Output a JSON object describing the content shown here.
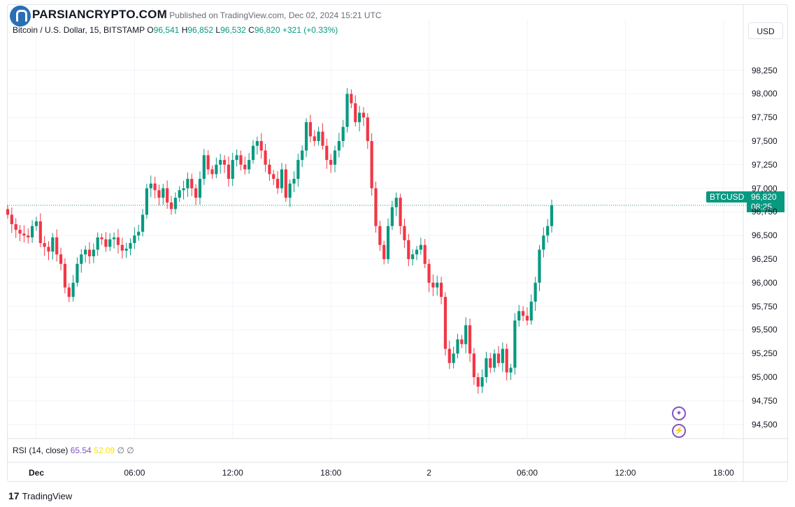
{
  "header": {
    "publisher_line": "Published on TradingView.com, Dec 02, 2024 15:21 UTC",
    "brand": "PARSIANCRYPTO.COM"
  },
  "legend": {
    "symbol": "Bitcoin / U.S. Dollar, 15, BITSTAMP",
    "o_label": "O",
    "o_value": "96,541",
    "h_label": "H",
    "h_value": "96,852",
    "l_label": "L",
    "l_value": "96,532",
    "c_label": "C",
    "c_value": "96,820",
    "change": "+321 (+0.33%)"
  },
  "currency_button": "USD",
  "price_tag": {
    "symbol": "BTCUSD",
    "price": "96,820",
    "countdown": "08:25"
  },
  "rsi": {
    "label": "RSI (14, close)",
    "value1": "65.54",
    "value2": "52.09",
    "n1": "∅",
    "n2": "∅"
  },
  "footer": {
    "brand": "TradingView",
    "logo_glyph": "17"
  },
  "colors": {
    "up": "#089981",
    "down": "#f23645",
    "grid": "#f0f3fa",
    "rsi": "#7e57c2"
  },
  "chart_data": {
    "type": "candlestick",
    "title": "Bitcoin / U.S. Dollar, 15, BITSTAMP",
    "interval_minutes": 15,
    "ylim": [
      94350,
      98550
    ],
    "y_ticks": [
      "98,250",
      "98,000",
      "97,750",
      "97,500",
      "97,250",
      "97,000",
      "96,750",
      "96,500",
      "96,250",
      "96,000",
      "95,750",
      "95,500",
      "95,250",
      "95,000",
      "94,750",
      "94,500"
    ],
    "y_tick_values": [
      98250,
      98000,
      97750,
      97500,
      97250,
      97000,
      96750,
      96500,
      96250,
      96000,
      95750,
      95500,
      95250,
      95000,
      94750,
      94500
    ],
    "x_ticks": [
      {
        "label": "Dec",
        "hour": 0
      },
      {
        "label": "06:00",
        "hour": 6
      },
      {
        "label": "12:00",
        "hour": 12
      },
      {
        "label": "18:00",
        "hour": 18
      },
      {
        "label": "2",
        "hour": 24
      },
      {
        "label": "06:00",
        "hour": 30
      },
      {
        "label": "12:00",
        "hour": 36
      },
      {
        "label": "18:00",
        "hour": 42
      }
    ],
    "last_price": 96820,
    "closes": [
      96720,
      96620,
      96560,
      96520,
      96500,
      96480,
      96600,
      96650,
      96420,
      96380,
      96330,
      96480,
      96300,
      96200,
      95950,
      95850,
      96000,
      96200,
      96300,
      96350,
      96280,
      96350,
      96480,
      96460,
      96380,
      96460,
      96480,
      96400,
      96340,
      96360,
      96420,
      96500,
      96540,
      96720,
      97000,
      97050,
      96980,
      96900,
      97000,
      96850,
      96780,
      96900,
      96980,
      97000,
      97100,
      97000,
      96900,
      97100,
      97350,
      97200,
      97150,
      97250,
      97300,
      97250,
      97100,
      97300,
      97350,
      97250,
      97200,
      97300,
      97450,
      97500,
      97400,
      97250,
      97150,
      97100,
      97000,
      97200,
      96900,
      97050,
      97100,
      97300,
      97400,
      97700,
      97550,
      97500,
      97600,
      97450,
      97300,
      97250,
      97400,
      97500,
      97650,
      98000,
      97900,
      97700,
      97800,
      97750,
      97500,
      97000,
      96600,
      96400,
      96250,
      96600,
      96800,
      96900,
      96600,
      96450,
      96250,
      96300,
      96350,
      96400,
      96200,
      96000,
      95950,
      96000,
      95850,
      95300,
      95150,
      95250,
      95400,
      95350,
      95550,
      95250,
      95000,
      94900,
      95000,
      95200,
      95100,
      95250,
      95150,
      95300,
      95050,
      95100,
      95600,
      95700,
      95650,
      95600,
      95800,
      96000,
      96350,
      96500,
      96600,
      96820
    ]
  }
}
